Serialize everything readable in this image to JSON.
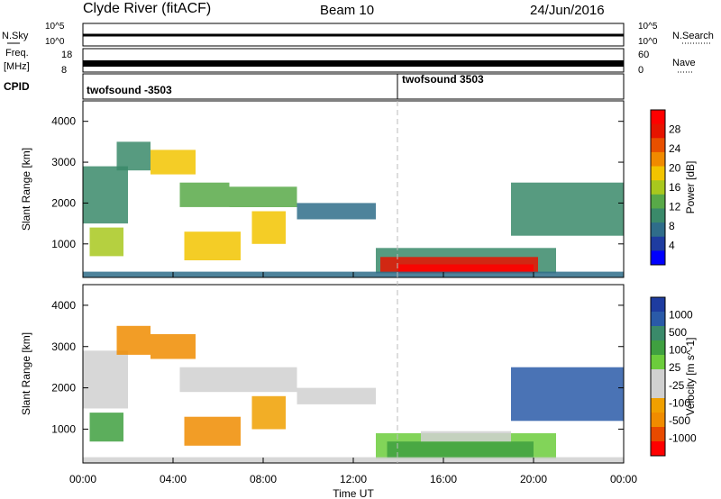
{
  "header": {
    "station": "Clyde River (fitACF)",
    "beam": "Beam 10",
    "date": "24/Jun/2016"
  },
  "strips": {
    "nsky": {
      "label": "N.Sky",
      "ticks": [
        "10^5",
        "10^0"
      ],
      "right_ticks": [
        "10^5",
        "10^0"
      ],
      "right_label": "N.Search"
    },
    "freq": {
      "label_top": "Freq.",
      "label_unit": "[MHz]",
      "ticks": [
        "18",
        "8"
      ],
      "right_ticks": [
        "60",
        "0"
      ],
      "right_label": "Nave"
    },
    "cpid": {
      "label": "CPID",
      "segments": [
        "twofsound -3503",
        "twofsound 3503"
      ]
    }
  },
  "colors": {
    "power": [
      "#0000ff",
      "#1e3ca0",
      "#2f6d8a",
      "#3a8a6a",
      "#58a948",
      "#a8c81e",
      "#f2c400",
      "#f08a00",
      "#e85000",
      "#e61400",
      "#ff0000"
    ],
    "velocity": [
      "#ff0000",
      "#e84a00",
      "#f08c00",
      "#f0a000",
      "#d0d0d0",
      "#d0d0d0",
      "#6ccc3c",
      "#3fa040",
      "#3a8a6a",
      "#2a5aa8",
      "#1e3ca0"
    ]
  },
  "chart_data": [
    {
      "type": "heatmap",
      "name": "power-panel",
      "ylabel": "Slant Range [km]",
      "xlim": [
        0,
        24
      ],
      "ylim": [
        180,
        4500
      ],
      "yticks": [
        "4000",
        "3000",
        "2000",
        "1000"
      ],
      "colorbar": {
        "label": "Power [dB]",
        "ticks": [
          "28",
          "24",
          "20",
          "16",
          "12",
          "8",
          "4"
        ]
      },
      "regions": [
        {
          "t0": 0.0,
          "t1": 2.0,
          "r0": 1500,
          "r1": 2900,
          "level": 3
        },
        {
          "t0": 0.3,
          "t1": 1.8,
          "r0": 700,
          "r1": 1400,
          "level": 5
        },
        {
          "t0": 1.5,
          "t1": 3.0,
          "r0": 2800,
          "r1": 3500,
          "level": 3
        },
        {
          "t0": 3.0,
          "t1": 5.0,
          "r0": 2700,
          "r1": 3300,
          "level": 6
        },
        {
          "t0": 4.3,
          "t1": 6.5,
          "r0": 1900,
          "r1": 2500,
          "level": 4
        },
        {
          "t0": 4.5,
          "t1": 7.0,
          "r0": 600,
          "r1": 1300,
          "level": 6
        },
        {
          "t0": 6.5,
          "t1": 9.5,
          "r0": 1900,
          "r1": 2400,
          "level": 4
        },
        {
          "t0": 7.5,
          "t1": 9.0,
          "r0": 1000,
          "r1": 1800,
          "level": 6
        },
        {
          "t0": 9.5,
          "t1": 13.0,
          "r0": 1600,
          "r1": 2000,
          "level": 2
        },
        {
          "t0": 13.0,
          "t1": 21.0,
          "r0": 280,
          "r1": 900,
          "level": 3
        },
        {
          "t0": 13.2,
          "t1": 20.2,
          "r0": 300,
          "r1": 680,
          "level": 9
        },
        {
          "t0": 14.0,
          "t1": 20.0,
          "r0": 280,
          "r1": 500,
          "level": 10
        },
        {
          "t0": 19.0,
          "t1": 24.0,
          "r0": 1200,
          "r1": 2500,
          "level": 3
        },
        {
          "t0": 0.0,
          "t1": 24.0,
          "r0": 190,
          "r1": 320,
          "level": 2
        }
      ]
    },
    {
      "type": "heatmap",
      "name": "velocity-panel",
      "ylabel": "Slant Range [km]",
      "xlabel": "Time UT",
      "xlim": [
        0,
        24
      ],
      "ylim": [
        180,
        4500
      ],
      "yticks": [
        "4000",
        "3000",
        "2000",
        "1000"
      ],
      "xticks": [
        "00:00",
        "04:00",
        "08:00",
        "12:00",
        "16:00",
        "20:00",
        "00:00"
      ],
      "colorbar": {
        "label": "Velocity [m s^-1]",
        "ticks": [
          "1000",
          "500",
          "100",
          "25",
          "-25",
          "-100",
          "-500",
          "-1000"
        ]
      },
      "regions": [
        {
          "t0": 0.0,
          "t1": 2.0,
          "r0": 1500,
          "r1": 2900,
          "level": 4
        },
        {
          "t0": 0.3,
          "t1": 1.8,
          "r0": 700,
          "r1": 1400,
          "level": 7
        },
        {
          "t0": 1.5,
          "t1": 3.0,
          "r0": 2800,
          "r1": 3500,
          "level": 2
        },
        {
          "t0": 3.0,
          "t1": 5.0,
          "r0": 2700,
          "r1": 3300,
          "level": 2
        },
        {
          "t0": 4.3,
          "t1": 9.5,
          "r0": 1900,
          "r1": 2500,
          "level": 4
        },
        {
          "t0": 4.5,
          "t1": 7.0,
          "r0": 600,
          "r1": 1300,
          "level": 2
        },
        {
          "t0": 7.5,
          "t1": 9.0,
          "r0": 1000,
          "r1": 1800,
          "level": 3
        },
        {
          "t0": 9.5,
          "t1": 13.0,
          "r0": 1600,
          "r1": 2000,
          "level": 5
        },
        {
          "t0": 13.0,
          "t1": 21.0,
          "r0": 280,
          "r1": 900,
          "level": 6
        },
        {
          "t0": 13.5,
          "t1": 20.0,
          "r0": 300,
          "r1": 700,
          "level": 7
        },
        {
          "t0": 15.0,
          "t1": 19.0,
          "r0": 700,
          "r1": 950,
          "level": 5
        },
        {
          "t0": 19.0,
          "t1": 24.0,
          "r0": 1200,
          "r1": 2500,
          "level": 9
        },
        {
          "t0": 0.0,
          "t1": 24.0,
          "r0": 190,
          "r1": 320,
          "level": 5
        }
      ]
    }
  ]
}
